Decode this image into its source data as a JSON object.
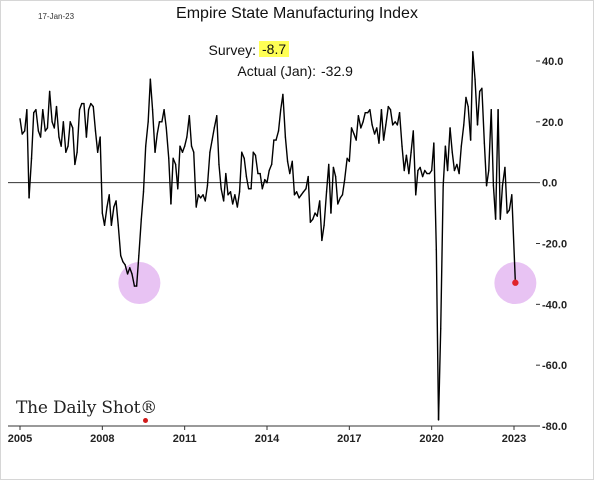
{
  "chart_data": {
    "type": "line",
    "title": "Empire State Manufacturing Index",
    "date_stamp": "17-Jan-23",
    "xlabel": "",
    "ylabel": "",
    "y_axis_side": "right",
    "xlim": [
      2005,
      2023.6
    ],
    "ylim": [
      -80,
      45
    ],
    "x_ticks": [
      2005,
      2008,
      2011,
      2014,
      2017,
      2020,
      2023
    ],
    "x_tick_labels": [
      "2005",
      "2008",
      "2011",
      "2014",
      "2017",
      "2020",
      "2023"
    ],
    "y_ticks": [
      40,
      20,
      0,
      -20,
      -40,
      -60,
      -80
    ],
    "y_tick_labels": [
      "40.0",
      "20.0",
      "0.0",
      "-20.0",
      "-40.0",
      "-60.0",
      "-80.0"
    ],
    "zero_line": true,
    "grid": false,
    "annotations": {
      "survey_label": "Survey:",
      "survey_value": "-8.7",
      "actual_label": "Actual (Jan):",
      "actual_value": "-32.9"
    },
    "highlights": [
      {
        "x": 2009.35,
        "y": -33
      },
      {
        "x": 2023.05,
        "y": -33
      }
    ],
    "last_point": {
      "x": 2023.05,
      "y": -32.9
    },
    "colors": {
      "line": "#000000",
      "highlight": "#e8c3f3",
      "last_point": "#e0242a"
    },
    "series": [
      {
        "x": [
          2005.0,
          2005.08,
          2005.17,
          2005.25,
          2005.33,
          2005.42,
          2005.5,
          2005.58,
          2005.67,
          2005.75,
          2005.83,
          2005.92,
          2006.0,
          2006.08,
          2006.17,
          2006.25,
          2006.33,
          2006.42,
          2006.5,
          2006.58,
          2006.67,
          2006.75,
          2006.83,
          2006.92,
          2007.0,
          2007.08,
          2007.17,
          2007.25,
          2007.33,
          2007.42,
          2007.5,
          2007.58,
          2007.67,
          2007.75,
          2007.83,
          2007.92,
          2008.0,
          2008.08,
          2008.17,
          2008.25,
          2008.33,
          2008.42,
          2008.5,
          2008.58,
          2008.67,
          2008.75,
          2008.83,
          2008.92,
          2009.0,
          2009.08,
          2009.17,
          2009.25,
          2009.33,
          2009.42,
          2009.5,
          2009.58,
          2009.67,
          2009.75,
          2009.83,
          2009.92,
          2010.0,
          2010.08,
          2010.17,
          2010.25,
          2010.33,
          2010.42,
          2010.5,
          2010.58,
          2010.67,
          2010.75,
          2010.83,
          2010.92,
          2011.0,
          2011.08,
          2011.17,
          2011.25,
          2011.33,
          2011.42,
          2011.5,
          2011.58,
          2011.67,
          2011.75,
          2011.83,
          2011.92,
          2012.0,
          2012.08,
          2012.17,
          2012.25,
          2012.33,
          2012.42,
          2012.5,
          2012.58,
          2012.67,
          2012.75,
          2012.83,
          2012.92,
          2013.0,
          2013.08,
          2013.17,
          2013.25,
          2013.33,
          2013.42,
          2013.5,
          2013.58,
          2013.67,
          2013.75,
          2013.83,
          2013.92,
          2014.0,
          2014.08,
          2014.17,
          2014.25,
          2014.33,
          2014.42,
          2014.5,
          2014.58,
          2014.67,
          2014.75,
          2014.83,
          2014.92,
          2015.0,
          2015.08,
          2015.17,
          2015.25,
          2015.33,
          2015.42,
          2015.5,
          2015.58,
          2015.67,
          2015.75,
          2015.83,
          2015.92,
          2016.0,
          2016.08,
          2016.17,
          2016.25,
          2016.33,
          2016.42,
          2016.5,
          2016.58,
          2016.67,
          2016.75,
          2016.83,
          2016.92,
          2017.0,
          2017.08,
          2017.17,
          2017.25,
          2017.33,
          2017.42,
          2017.5,
          2017.58,
          2017.67,
          2017.75,
          2017.83,
          2017.92,
          2018.0,
          2018.08,
          2018.17,
          2018.25,
          2018.33,
          2018.42,
          2018.5,
          2018.58,
          2018.67,
          2018.75,
          2018.83,
          2018.92,
          2019.0,
          2019.08,
          2019.17,
          2019.25,
          2019.33,
          2019.42,
          2019.5,
          2019.58,
          2019.67,
          2019.75,
          2019.83,
          2019.92,
          2020.0,
          2020.08,
          2020.17,
          2020.25,
          2020.33,
          2020.42,
          2020.5,
          2020.58,
          2020.67,
          2020.75,
          2020.83,
          2020.92,
          2021.0,
          2021.08,
          2021.17,
          2021.25,
          2021.33,
          2021.42,
          2021.5,
          2021.58,
          2021.67,
          2021.75,
          2021.83,
          2021.92,
          2022.0,
          2022.08,
          2022.17,
          2022.25,
          2022.33,
          2022.42,
          2022.5,
          2022.58,
          2022.67,
          2022.75,
          2022.83,
          2022.92,
          2023.05
        ],
        "y": [
          21,
          16,
          17,
          24,
          -5,
          8,
          23,
          24,
          17,
          15,
          24,
          17,
          18,
          30,
          20,
          18,
          25,
          15,
          12,
          20,
          10,
          12,
          20,
          18,
          6,
          10,
          24,
          26,
          26,
          15,
          24,
          26,
          25,
          17,
          10,
          15,
          -10,
          -14,
          -8,
          -4,
          -14,
          -8,
          -6,
          -14,
          -24,
          -26,
          -27,
          -30,
          -28,
          -30,
          -34,
          -34,
          -24,
          -12,
          -3,
          12,
          20,
          34,
          24,
          10,
          16,
          20,
          20,
          24,
          18,
          8,
          -7,
          8,
          6,
          -2,
          12,
          10,
          12,
          15,
          22,
          12,
          10,
          -8,
          -4,
          -5,
          -4,
          -6,
          -1,
          10,
          14,
          18,
          22,
          6,
          -2,
          -6,
          3,
          -4,
          -3,
          -7,
          -4,
          -8,
          -3,
          10,
          8,
          2,
          -2,
          -2,
          10,
          9,
          3,
          3,
          -2,
          1,
          0,
          4,
          6,
          14,
          14,
          17,
          24,
          29,
          15,
          7,
          3,
          7,
          -4,
          -3,
          -5,
          -4,
          -3,
          -2,
          2,
          -13,
          -12,
          -10,
          -11,
          -6,
          -19,
          -14,
          -3,
          6,
          -10,
          5,
          2,
          -7,
          -5,
          -4,
          1,
          8,
          7,
          18,
          16,
          14,
          22,
          18,
          20,
          23,
          23,
          24,
          19,
          16,
          18,
          13,
          24,
          14,
          19,
          25,
          24,
          19,
          20,
          19,
          23,
          12,
          4,
          9,
          3,
          10,
          17,
          -4,
          4,
          5,
          2,
          4,
          3,
          3,
          4,
          13,
          -22,
          -78,
          -48,
          -1,
          12,
          4,
          18,
          10,
          4,
          6,
          3,
          12,
          19,
          28,
          25,
          14,
          43,
          34,
          19,
          30,
          31,
          13,
          -1,
          4,
          24,
          -1,
          -12,
          24,
          -12,
          -1,
          5,
          -10,
          -9,
          -4,
          -32.9
        ]
      }
    ]
  }
}
